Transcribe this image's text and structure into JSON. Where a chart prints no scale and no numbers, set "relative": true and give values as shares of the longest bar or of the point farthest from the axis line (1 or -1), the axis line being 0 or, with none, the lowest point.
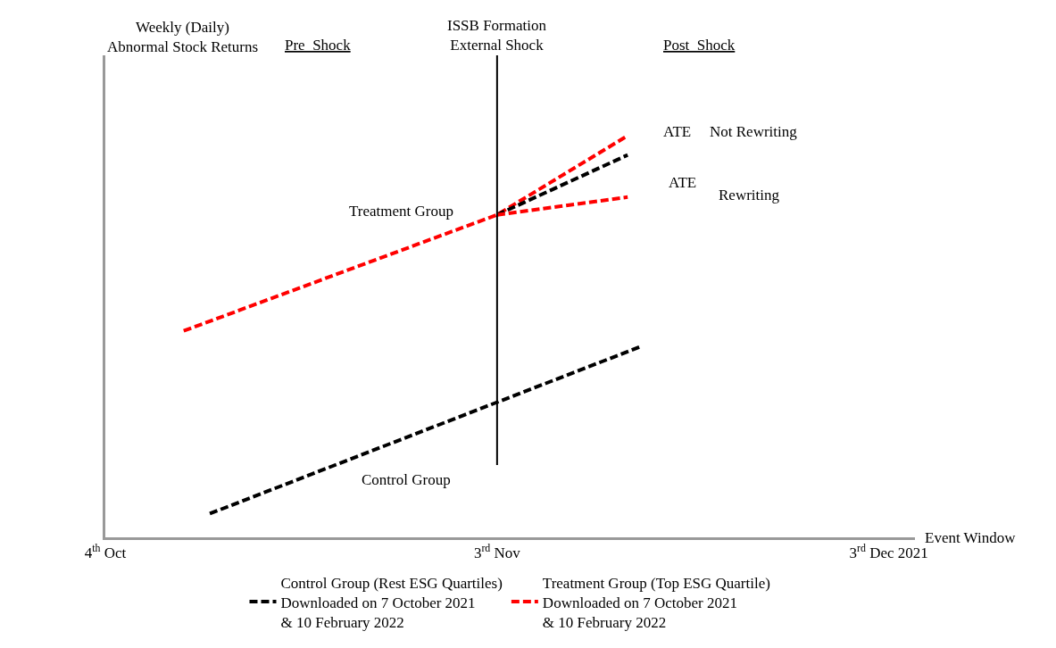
{
  "chart_data": {
    "type": "line",
    "relative": true,
    "xlabel": "Event Window",
    "xlim": [
      "2021-10-04",
      "2021-12-05"
    ],
    "xticks": [
      {
        "value": "2021-10-04",
        "label": "4$^{th}$ Oct"
      },
      {
        "value": "2021-11-03",
        "label": "3$^{rd}$ Nov"
      },
      {
        "value": "2021-12-03",
        "label": "3$^{rd}$ Dec 2021"
      }
    ],
    "series": [
      {
        "name": "Control Group (Rest ESG Quartiles)\nDownloaded on 7 October 2021\n& 10 February 2022",
        "color": "#000000",
        "x": [
          "2021-10-12",
          "2021-11-14"
        ],
        "values": [
          0.059,
          0.475
        ]
      },
      {
        "name": "Treatment Group (Top ESG Quartile)\nDownloaded on 7 October 2021\n& 10 February 2022",
        "color": "#ff0000",
        "x": [
          "2021-10-10",
          "2021-11-03",
          "2021-11-13"
        ],
        "values": [
          0.514,
          0.803,
          1.0
        ]
      },
      {
        "color": "#000000",
        "x": [
          "2021-11-03",
          "2021-11-13"
        ],
        "values": [
          0.803,
          0.952
        ]
      },
      {
        "color": "#ff0000",
        "x": [
          "2021-11-03",
          "2021-11-13"
        ],
        "values": [
          0.803,
          0.847
        ]
      }
    ],
    "ref_lines": [
      {
        "axis": "x",
        "value": "2021-11-03",
        "label": "ISSB Formation\nExternal Shock",
        "color": "#000000",
        "line_style": "solid"
      }
    ],
    "annotations": [
      "Weekly (Daily)\nAbnormal Stock Returns",
      "Pre_Shock",
      "Post_Shock",
      "Treatment Group",
      "Control Group",
      "ATE",
      "ATE",
      "Not Rewriting",
      "Rewriting"
    ],
    "legend": "bottom",
    "marker": "none",
    "line_style": "dashed",
    "tick_labels": "x"
  }
}
